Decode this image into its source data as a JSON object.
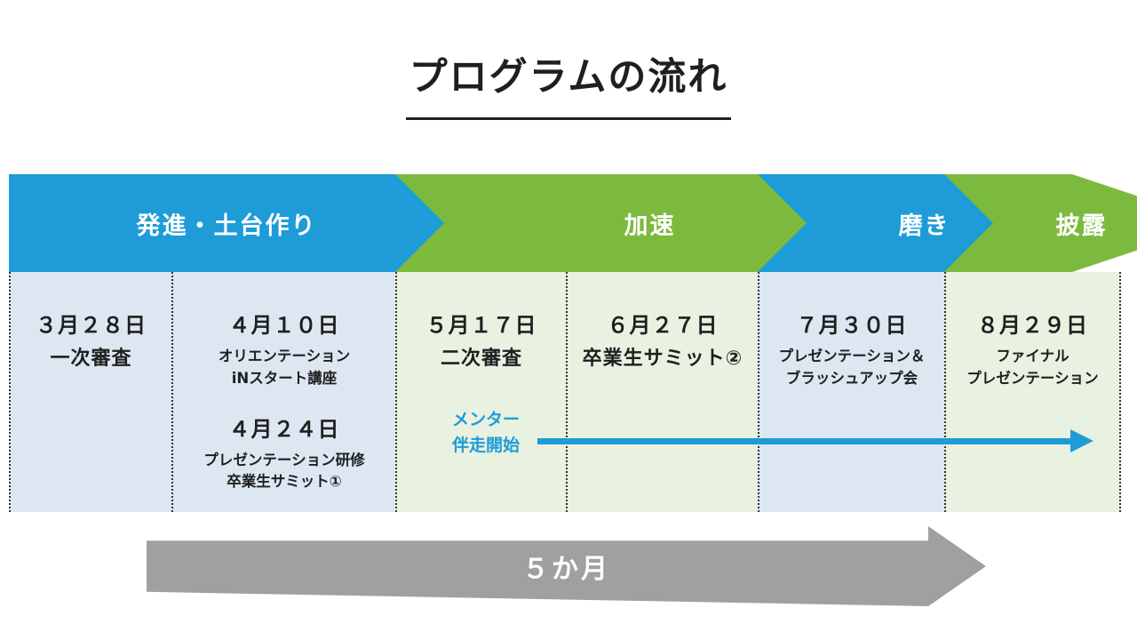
{
  "title": "プログラムの流れ",
  "phases": [
    {
      "label": "発進・土台作り",
      "color": "#1e9cd8"
    },
    {
      "label": "加速",
      "color": "#7cba3d"
    },
    {
      "label": "磨き",
      "color": "#1e9cd8"
    },
    {
      "label": "披露",
      "color": "#7cba3d"
    }
  ],
  "columns": [
    {
      "blocks": [
        {
          "date": "３月２８日",
          "lines": [
            "一次審査"
          ]
        }
      ]
    },
    {
      "blocks": [
        {
          "date": "４月１０日",
          "lines": [
            "オリエンテーション",
            "iNスタート講座"
          ]
        },
        {
          "date": "４月２４日",
          "lines": [
            "プレゼンテーション研修",
            "卒業生サミット①"
          ]
        }
      ]
    },
    {
      "blocks": [
        {
          "date": "５月１７日",
          "lines": [
            "二次審査"
          ]
        }
      ]
    },
    {
      "blocks": [
        {
          "date": "６月２７日",
          "lines": [
            "卒業生サミット②"
          ]
        }
      ]
    },
    {
      "blocks": [
        {
          "date": "７月３０日",
          "lines": [
            "プレゼンテーション＆",
            "ブラッシュアップ会"
          ]
        }
      ]
    },
    {
      "blocks": [
        {
          "date": "８月２９日",
          "lines": [
            "ファイナル",
            "プレゼンテーション"
          ]
        }
      ]
    }
  ],
  "mentor": {
    "lines": [
      "メンター",
      "伴走開始"
    ]
  },
  "duration": {
    "label": "５か月"
  },
  "colors": {
    "blue": "#1e9cd8",
    "green": "#7cba3d",
    "light_blue_bg": "#dce7f2",
    "light_green_bg": "#e9f1e1",
    "gray_arrow": "#9fa0a0",
    "mentor_text": "#1e9cd8"
  }
}
